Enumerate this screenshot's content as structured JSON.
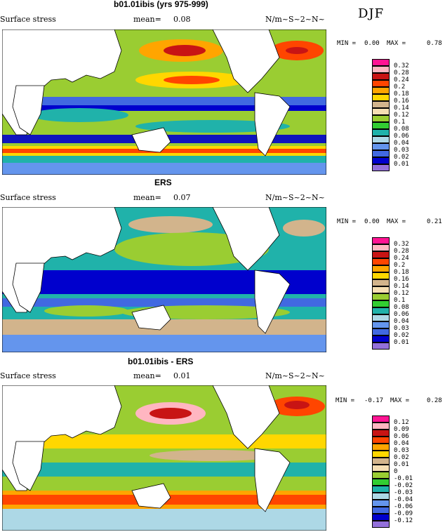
{
  "season": "DJF",
  "panels": [
    {
      "title": "b01.01ibis (yrs 975-999)",
      "field": "Surface stress",
      "mean_label": "mean=",
      "mean": "0.08",
      "units": "N/m~S~2~N~",
      "min_label": "MIN =",
      "min": "0.00",
      "max_label": "MAX =",
      "max": "0.78",
      "levels": [
        "0.32",
        "0.28",
        "0.24",
        "0.2",
        "0.18",
        "0.16",
        "0.14",
        "0.12",
        "0.1",
        "0.08",
        "0.06",
        "0.04",
        "0.03",
        "0.02",
        "0.01"
      ],
      "colors": [
        "#ff1493",
        "#ffb6c1",
        "#c81414",
        "#ff4500",
        "#ffa500",
        "#ffd700",
        "#d2b48c",
        "#f5deb3",
        "#9acd32",
        "#32cd32",
        "#20b2aa",
        "#add8e6",
        "#6495ed",
        "#4169e1",
        "#0000cd",
        "#9370db"
      ]
    },
    {
      "title": "ERS",
      "field": "Surface stress",
      "mean_label": "mean=",
      "mean": "0.07",
      "units": "N/m~S~2~N~",
      "min_label": "MIN =",
      "min": "0.00",
      "max_label": "MAX =",
      "max": "0.21",
      "levels": [
        "0.32",
        "0.28",
        "0.24",
        "0.2",
        "0.18",
        "0.16",
        "0.14",
        "0.12",
        "0.1",
        "0.08",
        "0.06",
        "0.04",
        "0.03",
        "0.02",
        "0.01"
      ],
      "colors": [
        "#ff1493",
        "#ffb6c1",
        "#c81414",
        "#ff4500",
        "#ffa500",
        "#ffd700",
        "#d2b48c",
        "#f5deb3",
        "#9acd32",
        "#32cd32",
        "#20b2aa",
        "#add8e6",
        "#6495ed",
        "#4169e1",
        "#0000cd",
        "#9370db"
      ]
    },
    {
      "title": "b01.01ibis - ERS",
      "field": "Surface stress",
      "mean_label": "mean=",
      "mean": "0.01",
      "units": "N/m~S~2~N~",
      "min_label": "MIN =",
      "min": "-0.17",
      "max_label": "MAX =",
      "max": "0.28",
      "levels": [
        "0.12",
        "0.09",
        "0.06",
        "0.04",
        "0.03",
        "0.02",
        "0.01",
        "0",
        "-0.01",
        "-0.02",
        "-0.03",
        "-0.04",
        "-0.06",
        "-0.09",
        "-0.12"
      ],
      "colors": [
        "#ff1493",
        "#ffb6c1",
        "#c81414",
        "#ff4500",
        "#ffa500",
        "#ffd700",
        "#d2b48c",
        "#f5deb3",
        "#9acd32",
        "#32cd32",
        "#20b2aa",
        "#add8e6",
        "#6495ed",
        "#4169e1",
        "#0000cd",
        "#9370db"
      ]
    }
  ]
}
